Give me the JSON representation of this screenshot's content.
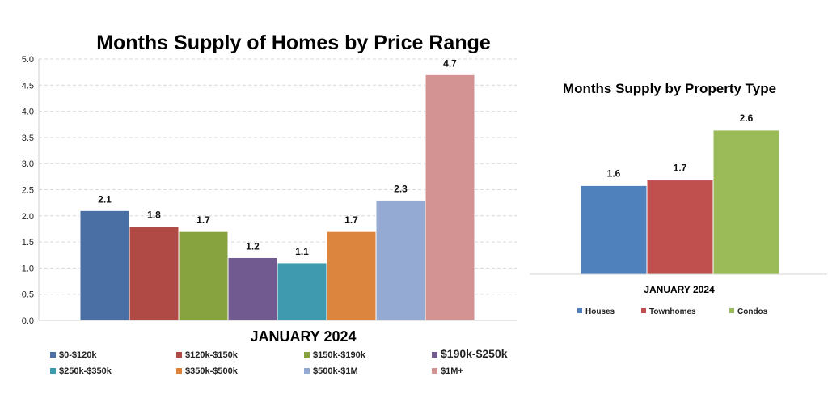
{
  "chart_data": [
    {
      "type": "bar",
      "title": "Months Supply of Homes by Price Range",
      "xlabel": "JANUARY 2024",
      "ylabel": "",
      "ylim": [
        0,
        5
      ],
      "yticks": [
        "0.0",
        "0.5",
        "1.0",
        "1.5",
        "2.0",
        "2.5",
        "3.0",
        "3.5",
        "4.0",
        "4.5",
        "5.0"
      ],
      "grid": "horizontal dashed",
      "legend_position": "bottom",
      "series": [
        {
          "name": "$0-$120k",
          "value": 2.1,
          "label": "2.1",
          "color": "#4A6FA5"
        },
        {
          "name": "$120k-$150k",
          "value": 1.8,
          "label": "1.8",
          "color": "#B04A45"
        },
        {
          "name": "$150k-$190k",
          "value": 1.7,
          "label": "1.7",
          "color": "#86A33F"
        },
        {
          "name": "$190k-$250k",
          "value": 1.2,
          "label": "1.2",
          "color": "#715A90"
        },
        {
          "name": "$250k-$350k",
          "value": 1.1,
          "label": "1.1",
          "color": "#3F9AB0"
        },
        {
          "name": "$350k-$500k",
          "value": 1.7,
          "label": "1.7",
          "color": "#DC853F"
        },
        {
          "name": "$500k-$1M",
          "value": 2.3,
          "label": "2.3",
          "color": "#95AAD3"
        },
        {
          "name": "$1M+",
          "value": 4.7,
          "label": "4.7",
          "color": "#D39393"
        }
      ]
    },
    {
      "type": "bar",
      "title": "Months Supply by Property Type",
      "xlabel": "JANUARY 2024",
      "ylabel": "",
      "axis_visible": false,
      "legend_position": "bottom",
      "series": [
        {
          "name": "Houses",
          "value": 1.6,
          "label": "1.6",
          "color": "#4F81BD"
        },
        {
          "name": "Townhomes",
          "value": 1.7,
          "label": "1.7",
          "color": "#C0504D"
        },
        {
          "name": "Condos",
          "value": 2.6,
          "label": "2.6",
          "color": "#9BBB59"
        }
      ]
    }
  ]
}
